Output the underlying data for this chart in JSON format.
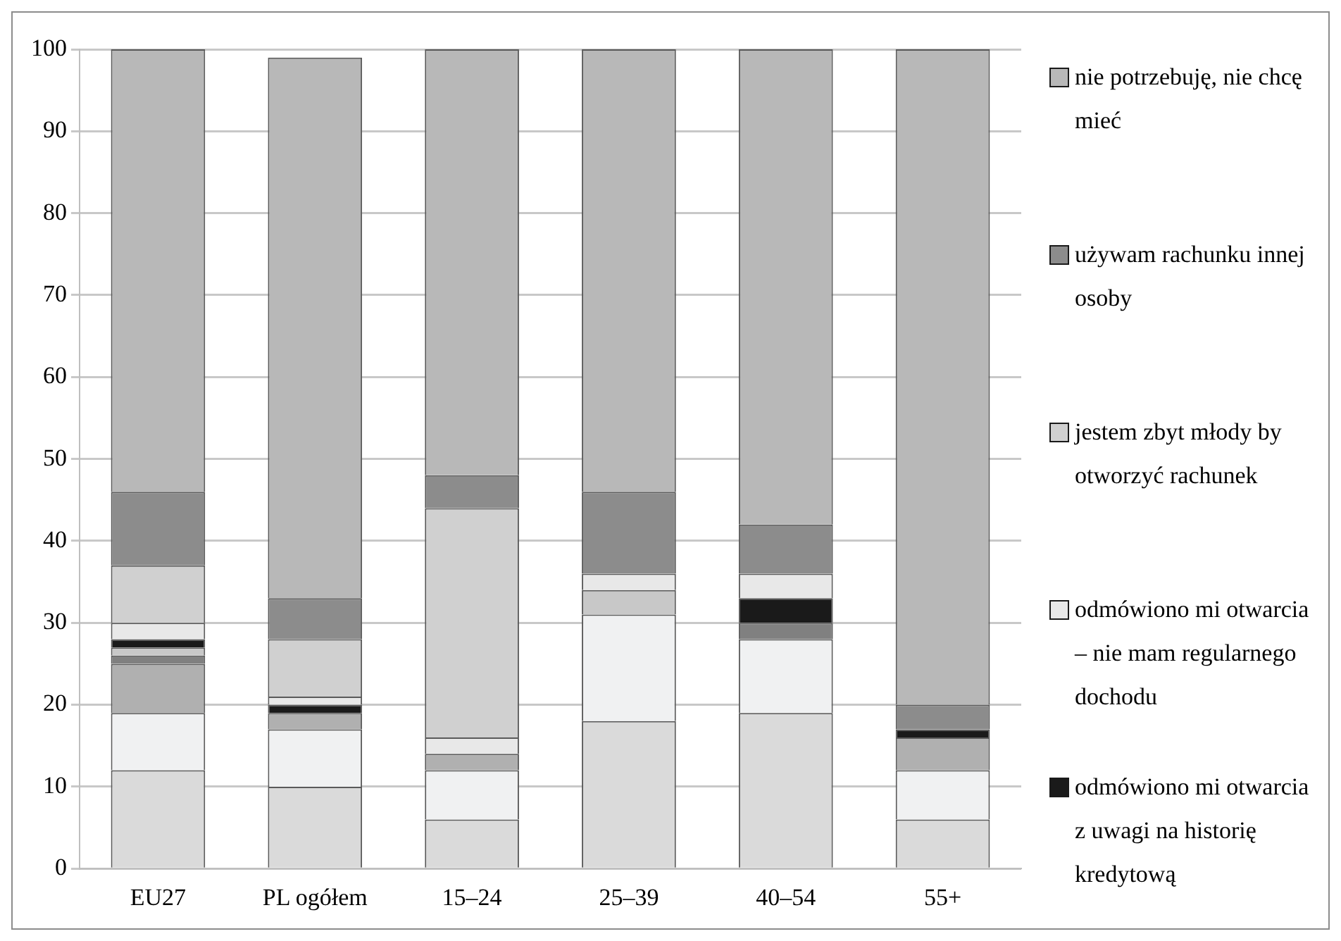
{
  "chart_data": {
    "type": "bar",
    "stacked": true,
    "categories": [
      "EU27",
      "PL ogółem",
      "15–24",
      "25–39",
      "40–54",
      "55+"
    ],
    "series": [
      {
        "color": "#dadada",
        "values": [
          12,
          10,
          6,
          18,
          19,
          6
        ]
      },
      {
        "color": "#f0f1f2",
        "values": [
          7,
          7,
          6,
          13,
          9,
          6
        ]
      },
      {
        "color": "#b0b0b0",
        "values": [
          6,
          2,
          2,
          0,
          0,
          4
        ]
      },
      {
        "color": "#808080",
        "values": [
          1,
          0,
          0,
          0,
          2,
          0
        ]
      },
      {
        "color": "#c8c8c8",
        "values": [
          1,
          0,
          0,
          3,
          0,
          0
        ]
      },
      {
        "name": "odmówiono mi otwarcia z uwagi na historię kredytową",
        "color": "#1a1a1a",
        "values": [
          1,
          1,
          0,
          0,
          3,
          1
        ]
      },
      {
        "name": "odmówiono mi otwarcia – nie mam regularnego dochodu",
        "color": "#e8e8e8",
        "values": [
          2,
          1,
          2,
          2,
          3,
          0
        ]
      },
      {
        "name": "jestem zbyt młody by otworzyć rachunek",
        "color": "#d0d0d0",
        "values": [
          7,
          7,
          28,
          0,
          0,
          0
        ]
      },
      {
        "name": "używam rachunku innej osoby",
        "color": "#8c8c8c",
        "values": [
          9,
          5,
          4,
          10,
          6,
          3
        ]
      },
      {
        "name": "nie potrzebuję, nie chcę mieć",
        "color": "#b8b8b8",
        "values": [
          54,
          66,
          52,
          54,
          58,
          80
        ]
      }
    ],
    "ylim": [
      0,
      100
    ],
    "yticks": [
      0,
      10,
      20,
      30,
      40,
      50,
      60,
      70,
      80,
      90,
      100
    ],
    "grid": "y",
    "legend": "right"
  }
}
